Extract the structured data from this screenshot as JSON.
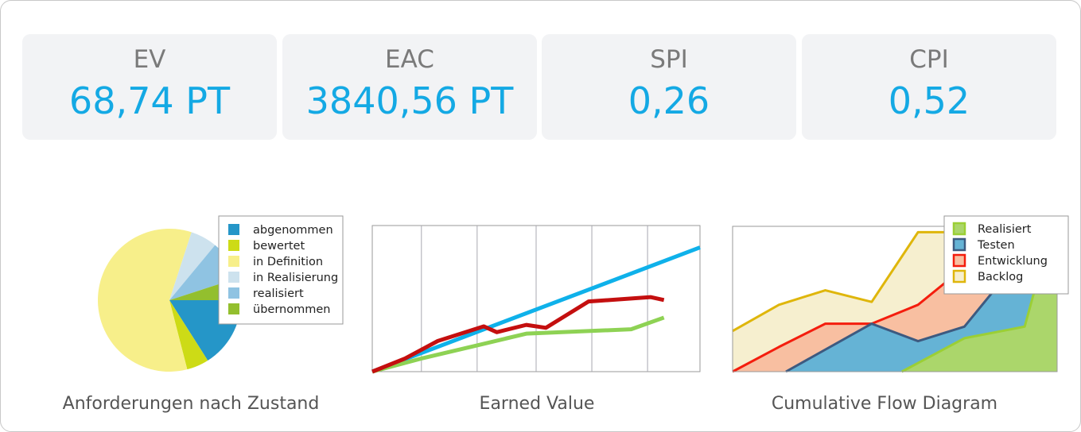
{
  "kpis": [
    {
      "label": "EV",
      "value": "68,74 PT"
    },
    {
      "label": "EAC",
      "value": "3840,56 PT"
    },
    {
      "label": "SPI",
      "value": "0,26"
    },
    {
      "label": "CPI",
      "value": "0,52"
    }
  ],
  "colors": {
    "kpi_value": "#14a9e4",
    "kpi_label": "#7a7a7a",
    "card_bg": "#f2f3f5"
  },
  "chart_data": [
    {
      "type": "pie",
      "title": "Anforderungen nach Zustand",
      "legend": "top-right",
      "slices": [
        {
          "name": "abgenommen",
          "value": 16,
          "color": "#2596c8"
        },
        {
          "name": "bewertet",
          "value": 5,
          "color": "#cddb16"
        },
        {
          "name": "in Definition",
          "value": 59,
          "color": "#f7ef8a"
        },
        {
          "name": "in Realisierung",
          "value": 6,
          "color": "#cde2ee"
        },
        {
          "name": "realisiert",
          "value": 9,
          "color": "#8fc3e2"
        },
        {
          "name": "übernommen",
          "value": 5,
          "color": "#93bf2e"
        }
      ]
    },
    {
      "type": "line",
      "title": "Earned Value",
      "grid": "vertical",
      "xlim": [
        0,
        10
      ],
      "ylim": [
        0,
        10
      ],
      "series": [
        {
          "color": "#0fb1ea",
          "x": [
            0,
            10
          ],
          "y": [
            0,
            8.5
          ]
        },
        {
          "color": "#c40f0f",
          "x": [
            0,
            1,
            2,
            3.4,
            3.8,
            4.7,
            5.3,
            6.6,
            8.5,
            8.9
          ],
          "y": [
            0,
            0.9,
            2.1,
            3.1,
            2.7,
            3.2,
            3.0,
            4.8,
            5.1,
            4.9
          ]
        },
        {
          "color": "#8ed254",
          "x": [
            0,
            1.5,
            3.2,
            4.7,
            7.9,
            8.9
          ],
          "y": [
            0,
            0.9,
            1.8,
            2.6,
            2.9,
            3.7
          ]
        }
      ]
    },
    {
      "type": "area",
      "title": "Cumulative Flow Diagram",
      "legend": "top-right",
      "xlim": [
        0,
        7
      ],
      "ylim": [
        0,
        10
      ],
      "series": [
        {
          "name": "Backlog",
          "fill": "#f6efcf",
          "stroke": "#dfb60b",
          "x": [
            0,
            1,
            2,
            3,
            4,
            5,
            6,
            7
          ],
          "y": [
            2.8,
            4.6,
            5.6,
            4.8,
            9.6,
            9.6,
            9.6,
            9.6
          ]
        },
        {
          "name": "Entwicklung",
          "fill": "#f8bfa1",
          "stroke": "#f41d0d",
          "x": [
            0,
            1,
            2,
            3,
            4,
            5,
            6,
            7
          ],
          "y": [
            0,
            1.7,
            3.3,
            3.3,
            4.6,
            7.2,
            8.0,
            8.4
          ]
        },
        {
          "name": "Testen",
          "fill": "#65b3d5",
          "stroke": "#3d5a80",
          "x": [
            1.15,
            3,
            4,
            5,
            6,
            7
          ],
          "y": [
            0,
            3.3,
            2.1,
            3.1,
            7.0,
            8.4
          ]
        },
        {
          "name": "Realisiert",
          "fill": "#abd66b",
          "stroke": "#9bcf35",
          "x": [
            3.65,
            5,
            6.3,
            6.6,
            7
          ],
          "y": [
            0,
            2.3,
            3.1,
            6.6,
            6.8
          ]
        }
      ]
    }
  ],
  "legend_cfd": [
    "Realisiert",
    "Testen",
    "Entwicklung",
    "Backlog"
  ]
}
